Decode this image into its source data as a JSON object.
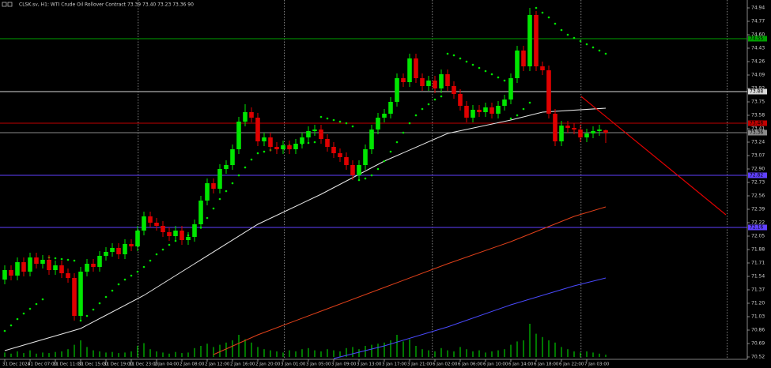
{
  "chart_data": {
    "type": "candlestick",
    "title": "CLSK.sv, H1: WTI Crude Oil Rollover Contract 73.39 73.40 73.23 73.36 90",
    "background": "#000000",
    "up_color": "#00e600",
    "down_color": "#e00000",
    "xlim": [
      -0.75,
      117.375
    ],
    "ylim": [
      70.49,
      75.04
    ],
    "yticks": [
      74.94,
      74.77,
      {
        "value": 74.6,
        "label": "74.60"
      },
      74.43,
      74.26,
      74.09,
      73.92,
      73.75,
      73.58,
      73.41,
      73.24,
      73.07,
      {
        "value": 72.9,
        "label": "72.90"
      },
      72.73,
      72.56,
      72.39,
      72.22,
      72.05,
      71.88,
      71.71,
      71.54,
      71.37,
      {
        "value": 71.2,
        "label": "71.20"
      },
      71.03,
      70.86,
      70.69,
      70.52
    ],
    "xticks": [
      {
        "value": 0,
        "label": "31 Dec 2024"
      },
      {
        "value": 4,
        "label": "31 Dec 07:00"
      },
      {
        "value": 8,
        "label": "31 Dec 11:00"
      },
      {
        "value": 12,
        "label": "31 Dec 15:00"
      },
      {
        "value": 16,
        "label": "31 Dec 19:00"
      },
      {
        "value": 20,
        "label": "31 Dec 23:00"
      },
      {
        "value": 24,
        "label": "2 Jan 04:00"
      },
      {
        "value": 28,
        "label": "2 Jan 08:00"
      },
      {
        "value": 32,
        "label": "2 Jan 12:00"
      },
      {
        "value": 36,
        "label": "2 Jan 16:00"
      },
      {
        "value": 40,
        "label": "2 Jan 20:00"
      },
      {
        "value": 44,
        "label": "3 Jan 01:00"
      },
      {
        "value": 48,
        "label": "3 Jan 05:00"
      },
      {
        "value": 52,
        "label": "3 Jan 09:00"
      },
      {
        "value": 56,
        "label": "3 Jan 13:00"
      },
      {
        "value": 60,
        "label": "3 Jan 17:00"
      },
      {
        "value": 64,
        "label": "3 Jan 21:00"
      },
      {
        "value": 68,
        "label": "6 Jan 02:00"
      },
      {
        "value": 72,
        "label": "6 Jan 06:00"
      },
      {
        "value": 76,
        "label": "6 Jan 10:00"
      },
      {
        "value": 80,
        "label": "6 Jan 14:00"
      },
      {
        "value": 84,
        "label": "6 Jan 18:00"
      },
      {
        "value": 88,
        "label": "6 Jan 22:00"
      },
      {
        "value": 92,
        "label": "7 Jan 03:00"
      }
    ],
    "open": [
      71.5,
      71.62,
      71.55,
      71.72,
      71.6,
      71.78,
      71.7,
      71.75,
      71.62,
      71.68,
      71.58,
      71.52,
      71.04,
      71.6,
      71.7,
      71.66,
      71.8,
      71.85,
      71.9,
      71.82,
      71.95,
      71.92,
      72.12,
      72.3,
      72.22,
      72.18,
      72.1,
      72.05,
      72.12,
      72.0,
      72.04,
      72.2,
      72.5,
      72.72,
      72.65,
      72.9,
      72.95,
      73.15,
      73.5,
      73.62,
      73.55,
      73.25,
      73.3,
      73.18,
      73.15,
      73.2,
      73.15,
      73.22,
      73.3,
      73.38,
      73.4,
      73.28,
      73.18,
      73.1,
      73.05,
      72.95,
      72.82,
      72.95,
      73.15,
      73.4,
      73.55,
      73.6,
      73.75,
      74.05,
      74.0,
      74.3,
      74.05,
      73.95,
      74.02,
      73.92,
      74.1,
      73.95,
      73.85,
      73.7,
      73.55,
      73.65,
      73.62,
      73.68,
      73.6,
      73.7,
      73.78,
      74.05,
      74.4,
      74.2,
      74.85,
      74.2,
      74.15,
      73.6,
      73.25,
      73.45,
      73.42,
      73.4,
      73.3,
      73.35,
      73.38,
      73.39
    ],
    "high": [
      71.68,
      71.68,
      71.78,
      71.78,
      71.84,
      71.84,
      71.81,
      71.81,
      71.74,
      71.74,
      71.64,
      71.58,
      71.66,
      71.76,
      71.76,
      71.86,
      71.91,
      71.96,
      71.96,
      72.01,
      72.01,
      72.18,
      72.36,
      72.36,
      72.28,
      72.24,
      72.16,
      72.18,
      72.18,
      72.1,
      72.26,
      72.56,
      72.78,
      72.78,
      72.96,
      73.01,
      73.21,
      73.56,
      73.72,
      73.68,
      73.61,
      73.36,
      73.36,
      73.24,
      73.26,
      73.26,
      73.28,
      73.36,
      73.44,
      73.46,
      73.46,
      73.34,
      73.24,
      73.16,
      73.11,
      73.01,
      73.01,
      73.21,
      73.46,
      73.61,
      73.66,
      73.81,
      74.11,
      74.11,
      74.36,
      74.36,
      74.11,
      74.08,
      74.08,
      74.16,
      74.16,
      74.01,
      73.91,
      73.76,
      73.71,
      73.71,
      73.74,
      73.74,
      73.76,
      73.84,
      74.11,
      74.46,
      74.46,
      74.94,
      74.9,
      74.26,
      74.21,
      73.66,
      73.51,
      73.51,
      73.48,
      73.46,
      73.41,
      73.44,
      73.46,
      73.4
    ],
    "low": [
      71.44,
      71.49,
      71.49,
      71.54,
      71.54,
      71.64,
      71.64,
      71.56,
      71.56,
      71.52,
      71.46,
      70.98,
      70.98,
      71.54,
      71.6,
      71.6,
      71.74,
      71.79,
      71.76,
      71.76,
      71.86,
      71.86,
      72.06,
      72.16,
      72.12,
      72.04,
      71.99,
      71.99,
      71.94,
      71.94,
      71.98,
      72.14,
      72.44,
      72.59,
      72.59,
      72.84,
      72.89,
      73.09,
      73.44,
      73.49,
      73.19,
      73.19,
      73.12,
      73.09,
      73.09,
      73.09,
      73.09,
      73.16,
      73.24,
      73.32,
      73.22,
      73.12,
      73.04,
      72.99,
      72.89,
      72.76,
      72.76,
      72.89,
      73.09,
      73.34,
      73.49,
      73.54,
      73.69,
      73.94,
      73.94,
      73.99,
      73.89,
      73.89,
      73.86,
      73.86,
      73.89,
      73.79,
      73.64,
      73.49,
      73.49,
      73.56,
      73.56,
      73.54,
      73.54,
      73.64,
      73.72,
      73.99,
      74.14,
      74.14,
      74.14,
      74.09,
      73.54,
      73.19,
      73.19,
      73.36,
      73.34,
      73.24,
      73.24,
      73.29,
      73.32,
      73.23
    ],
    "close": [
      71.62,
      71.55,
      71.72,
      71.6,
      71.78,
      71.7,
      71.75,
      71.62,
      71.68,
      71.58,
      71.52,
      71.04,
      71.6,
      71.7,
      71.66,
      71.8,
      71.85,
      71.9,
      71.82,
      71.95,
      71.92,
      72.12,
      72.3,
      72.22,
      72.18,
      72.1,
      72.05,
      72.12,
      72.0,
      72.04,
      72.2,
      72.5,
      72.72,
      72.65,
      72.9,
      72.95,
      73.15,
      73.5,
      73.62,
      73.55,
      73.25,
      73.3,
      73.18,
      73.15,
      73.2,
      73.15,
      73.22,
      73.3,
      73.38,
      73.4,
      73.28,
      73.18,
      73.1,
      73.05,
      72.95,
      72.82,
      72.95,
      73.15,
      73.4,
      73.55,
      73.6,
      73.75,
      74.05,
      74.0,
      74.3,
      74.05,
      73.95,
      74.02,
      73.92,
      74.1,
      73.95,
      73.85,
      73.7,
      73.55,
      73.65,
      73.62,
      73.68,
      73.6,
      73.7,
      73.78,
      74.05,
      74.4,
      74.2,
      74.85,
      74.2,
      74.15,
      73.6,
      73.25,
      73.45,
      73.42,
      73.4,
      73.3,
      73.35,
      73.38,
      73.4,
      73.36
    ],
    "sar_color": "#00e600",
    "sar": [
      70.85,
      70.92,
      71.0,
      71.07,
      71.13,
      71.19,
      71.25,
      71.78,
      71.77,
      71.76,
      71.75,
      71.74,
      70.98,
      71.04,
      71.12,
      71.2,
      71.28,
      71.36,
      71.44,
      71.5,
      71.55,
      71.6,
      71.66,
      71.74,
      71.82,
      71.88,
      71.94,
      71.99,
      72.03,
      72.06,
      72.1,
      72.16,
      72.28,
      72.4,
      72.52,
      72.62,
      72.72,
      72.82,
      72.92,
      73.02,
      73.1,
      73.12,
      73.14,
      73.16,
      73.18,
      73.2,
      73.21,
      73.22,
      73.23,
      73.24,
      73.56,
      73.54,
      73.52,
      73.5,
      73.48,
      73.44,
      72.76,
      72.78,
      72.82,
      72.9,
      73.0,
      73.12,
      73.24,
      73.36,
      73.48,
      73.58,
      73.66,
      73.72,
      73.78,
      73.82,
      74.36,
      74.34,
      74.3,
      74.26,
      74.22,
      74.18,
      74.14,
      74.1,
      74.06,
      74.02,
      73.54,
      73.58,
      73.66,
      73.74,
      74.94,
      74.88,
      74.82,
      74.74,
      74.66,
      74.6,
      74.56,
      74.52,
      74.48,
      74.44,
      74.4,
      74.36
    ],
    "volume_color": "#00c800",
    "volume_lim": [
      0,
      100
    ],
    "volume": [
      8,
      6,
      10,
      7,
      12,
      6,
      8,
      7,
      9,
      10,
      14,
      22,
      30,
      18,
      12,
      10,
      8,
      9,
      7,
      8,
      10,
      20,
      25,
      14,
      10,
      8,
      6,
      9,
      7,
      8,
      16,
      20,
      24,
      18,
      22,
      26,
      30,
      40,
      32,
      26,
      18,
      14,
      12,
      10,
      8,
      12,
      10,
      14,
      16,
      12,
      10,
      14,
      12,
      10,
      16,
      18,
      14,
      20,
      22,
      24,
      26,
      30,
      40,
      28,
      32,
      20,
      14,
      12,
      10,
      16,
      12,
      10,
      18,
      14,
      10,
      12,
      8,
      10,
      12,
      14,
      22,
      28,
      30,
      60,
      42,
      36,
      30,
      26,
      18,
      14,
      10,
      8,
      10,
      8,
      6,
      4
    ],
    "lines": [
      {
        "color": "#e8e8e8",
        "x": [
          0,
          12,
          22,
          30,
          40,
          50,
          60,
          70,
          80,
          85,
          95
        ],
        "values": [
          70.6,
          70.88,
          71.3,
          71.7,
          72.2,
          72.58,
          73.0,
          73.35,
          73.52,
          73.62,
          73.67
        ]
      },
      {
        "color": "#e0401a",
        "x": [
          33,
          40,
          50,
          60,
          70,
          80,
          90,
          95
        ],
        "values": [
          70.55,
          70.8,
          71.1,
          71.4,
          71.7,
          71.98,
          72.3,
          72.42
        ]
      },
      {
        "color": "#4a4aff",
        "x": [
          52,
          60,
          70,
          80,
          90,
          95
        ],
        "values": [
          70.5,
          70.66,
          70.9,
          71.18,
          71.42,
          71.52
        ]
      }
    ],
    "trendline": {
      "color": "#e00000",
      "x": [
        91.1,
        114
      ],
      "values": [
        73.82,
        72.32
      ]
    },
    "separators": [
      21.1,
      44.2,
      67.6,
      91.1,
      114.2
    ],
    "levels": [
      {
        "value": 74.55,
        "color": "#00a000"
      },
      {
        "value": 73.88,
        "color": "#d8d8d8"
      },
      {
        "value": 73.48,
        "color": "#c00000"
      },
      {
        "value": 73.36,
        "color": "#8a8a8a"
      },
      {
        "value": 72.82,
        "color": "#6040ff"
      },
      {
        "value": 72.16,
        "color": "#6040ff"
      }
    ]
  }
}
